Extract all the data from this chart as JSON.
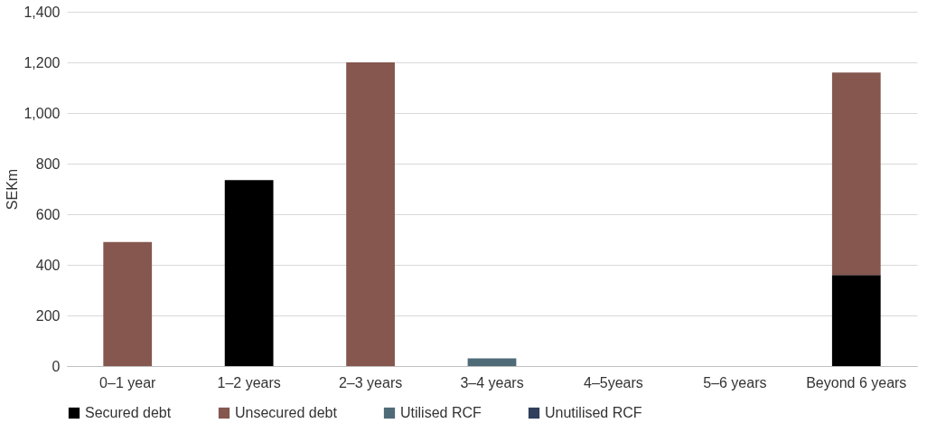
{
  "chart_data": {
    "type": "bar",
    "stacked": true,
    "ylabel": "SEKm",
    "categories": [
      "0–1 year",
      "1–2 years",
      "2–3 years",
      "3–4 years",
      "4–5years",
      "5–6 years",
      "Beyond 6 years"
    ],
    "series": [
      {
        "name": "Secured debt",
        "color": "#000000",
        "values": [
          null,
          735,
          null,
          null,
          null,
          null,
          360
        ]
      },
      {
        "name": "Unsecured debt",
        "color": "#85574f",
        "values": [
          490,
          null,
          1200,
          null,
          null,
          null,
          800
        ]
      },
      {
        "name": "Utilised RCF",
        "color": "#4f6b78",
        "values": [
          null,
          null,
          null,
          30,
          null,
          null,
          null
        ]
      },
      {
        "name": "Unutilised RCF",
        "color": "#2f3f5c",
        "values": [
          null,
          null,
          null,
          null,
          null,
          null,
          null
        ]
      }
    ],
    "ylim": [
      0,
      1400
    ],
    "yticks": [
      0,
      200,
      400,
      600,
      800,
      {
        "value": 1000,
        "label": "1,000"
      },
      {
        "value": 1200,
        "label": "1,200"
      },
      {
        "value": 1400,
        "label": "1,400"
      }
    ],
    "grid": "y",
    "legend": "bottom"
  }
}
